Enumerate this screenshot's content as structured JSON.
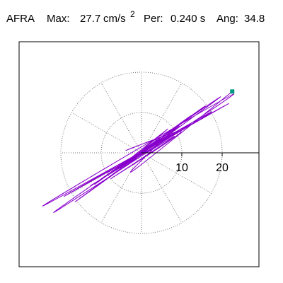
{
  "header": {
    "station": "AFRA",
    "max_label": "Max:",
    "max_value": "27.7",
    "max_unit": "cm/s",
    "max_exponent": "2",
    "per_label": "Per:",
    "per_value": "0.240 s",
    "ang_label": "Ang:",
    "ang_value": "34.8"
  },
  "chart_data": {
    "type": "scatter",
    "subtype": "particle-motion-polar",
    "units": "cm/s^2",
    "max_amplitude": 27.7,
    "period_s": 0.24,
    "angle_deg": 34.8,
    "radial_ticks": [
      10,
      20
    ],
    "polar_grid": {
      "rings": [
        10,
        20
      ],
      "spoke_step_deg": 30,
      "style": "dotted"
    },
    "trace_color": "#8800cc",
    "end_marker_color": "#009980",
    "end_point": {
      "x": 22.5,
      "y": 15.2
    },
    "trace": {
      "x": [
        0,
        2.6,
        -1.8,
        4.5,
        -3.2,
        6.8,
        -5.9,
        9.4,
        -7.3,
        12.1,
        -11.6,
        15.8,
        -16.4,
        19.6,
        -21.8,
        22.9,
        -24.5,
        21.6,
        -19.2,
        17.4,
        -12.6,
        13.8,
        -9.5,
        10.2,
        -8.4,
        7.1,
        -6.2,
        5.4,
        -4.1,
        3.2,
        -2.5,
        6.5,
        -5.3,
        8.2,
        -7.6,
        9.8,
        -3.8,
        4.6,
        -2.2,
        22.5
      ],
      "y": [
        0,
        1.8,
        -0.9,
        3.4,
        -2.1,
        4.9,
        -3.8,
        6.6,
        -4.9,
        9.1,
        -7.8,
        11.6,
        -12.1,
        13.9,
        -14.8,
        14.6,
        -13.2,
        12.2,
        -10.8,
        10.2,
        -8.1,
        7.9,
        -6.1,
        6.2,
        -4.9,
        4.6,
        -3.9,
        3.5,
        -2.7,
        2.1,
        -1.6,
        5.9,
        -3.7,
        4.1,
        -6.4,
        5.2,
        0.6,
        3.2,
        -4.5,
        15.2
      ]
    }
  }
}
